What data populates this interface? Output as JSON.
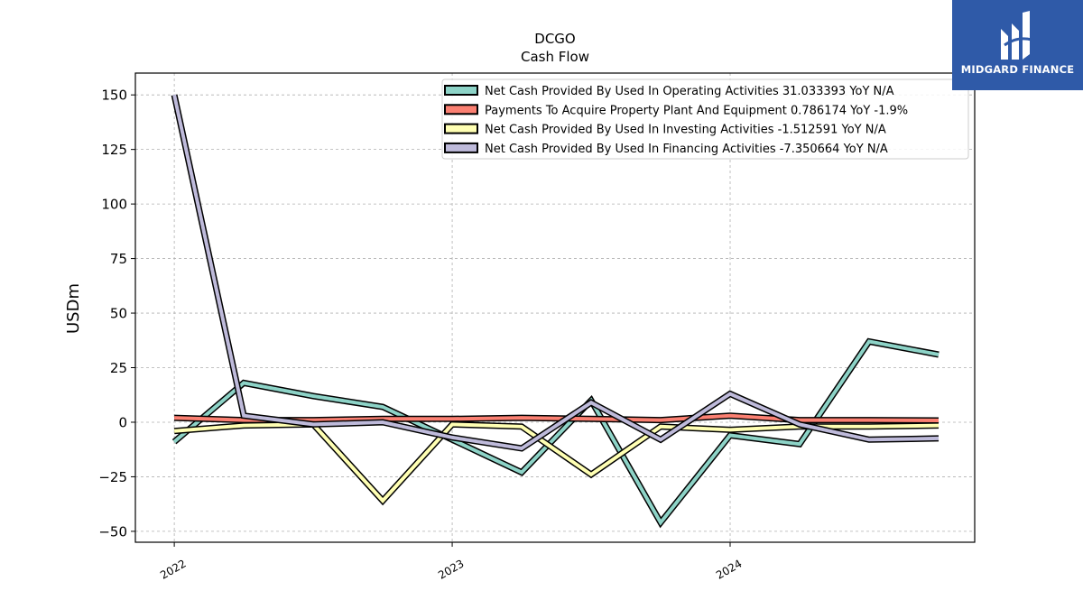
{
  "logo": {
    "text": "MIDGARD FINANCE",
    "bg_color": "#2f5aa8"
  },
  "chart_data": {
    "type": "line",
    "title": "DCGO",
    "subtitle": "Cash Flow",
    "xlabel": "",
    "ylabel": "USDm",
    "ylim": [
      -55,
      160
    ],
    "yticks": [
      -50,
      -25,
      0,
      25,
      50,
      75,
      100,
      125,
      150
    ],
    "ytick_labels": [
      "−50",
      "−25",
      "0",
      "25",
      "50",
      "75",
      "100",
      "125",
      "150"
    ],
    "xticks": [
      2022,
      2023,
      2024
    ],
    "xtick_labels": [
      "2022",
      "2023",
      "2024"
    ],
    "xlim": [
      2021.86,
      2024.88
    ],
    "grid": true,
    "legend_position": "top-right",
    "x": [
      2022.0,
      2022.25,
      2022.5,
      2022.75,
      2023.0,
      2023.25,
      2023.5,
      2023.75,
      2024.0,
      2024.25,
      2024.5,
      2024.75
    ],
    "series": [
      {
        "name": "Net Cash Provided By Used In Operating Activities",
        "legend_label": "Net Cash Provided By Used In Operating Activities  31.033393 YoY N/A",
        "color": "#8dd3c7",
        "values": [
          -9,
          18,
          12,
          7,
          -8,
          -23,
          10,
          -46,
          -6,
          -10,
          37,
          31
        ]
      },
      {
        "name": "Payments To Acquire Property Plant And Equipment",
        "legend_label": "Payments To Acquire Property Plant And Equipment  0.786174 YoY -1.9%",
        "color": "#fb8072",
        "values": [
          2,
          1,
          1,
          1.5,
          1.5,
          2,
          1.5,
          1,
          3,
          1,
          1,
          0.8
        ]
      },
      {
        "name": "Net Cash Provided By Used In Investing Activities",
        "legend_label": "Net Cash Provided By Used In Investing Activities  -1.512591 YoY N/A",
        "color": "#ffffb3",
        "values": [
          -4,
          -1.5,
          -1,
          -36,
          -1,
          -2,
          -24,
          -2,
          -3.5,
          -2,
          -2,
          -1.5
        ]
      },
      {
        "name": "Net Cash Provided By Used In Financing Activities",
        "legend_label": "Net Cash Provided By Used In Financing Activities  -7.350664 YoY N/A",
        "color": "#bebada",
        "values": [
          150,
          3,
          -1,
          0,
          -7,
          -12,
          9,
          -8,
          13,
          -1,
          -8,
          -7.4
        ]
      }
    ]
  }
}
